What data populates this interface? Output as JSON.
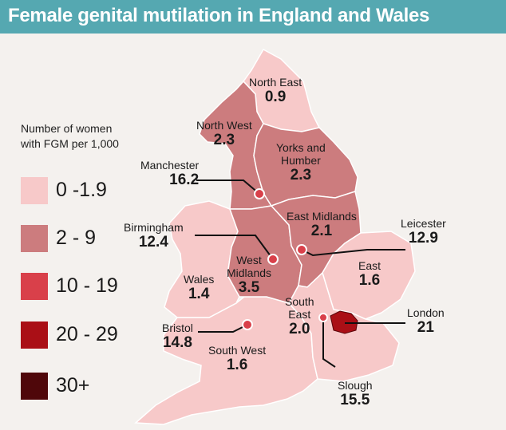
{
  "title": "Female genital mutilation in England and Wales",
  "legend": {
    "title_line1": "Number of women",
    "title_line2": "with FGM per 1,000",
    "items": [
      {
        "label": "0 -1.9",
        "color": "#f7c9c9"
      },
      {
        "label": "2 - 9",
        "color": "#cc7c7e"
      },
      {
        "label": "10 - 19",
        "color": "#d9404a"
      },
      {
        "label": "20 - 29",
        "color": "#aa0f16"
      },
      {
        "label": "30+",
        "color": "#4f070a"
      }
    ]
  },
  "regions": {
    "north_east": {
      "name": "North East",
      "value": "0.9"
    },
    "north_west": {
      "name": "North West",
      "value": "2.3"
    },
    "yorks": {
      "name_line1": "Yorks and",
      "name_line2": "Humber",
      "value": "2.3"
    },
    "east_midlands": {
      "name": "East Midlands",
      "value": "2.1"
    },
    "west_midlands": {
      "name_line1": "West",
      "name_line2": "Midlands",
      "value": "3.5"
    },
    "wales": {
      "name": "Wales",
      "value": "1.4"
    },
    "east": {
      "name": "East",
      "value": "1.6"
    },
    "south_east": {
      "name_line1": "South",
      "name_line2": "East",
      "value": "2.0"
    },
    "south_west": {
      "name": "South West",
      "value": "1.6"
    }
  },
  "cities": {
    "manchester": {
      "name": "Manchester",
      "value": "16.2"
    },
    "birmingham": {
      "name": "Birmingham",
      "value": "12.4"
    },
    "leicester": {
      "name": "Leicester",
      "value": "12.9"
    },
    "bristol": {
      "name": "Bristol",
      "value": "14.8"
    },
    "london": {
      "name": "London",
      "value": "21"
    },
    "slough": {
      "name": "Slough",
      "value": "15.5"
    }
  }
}
